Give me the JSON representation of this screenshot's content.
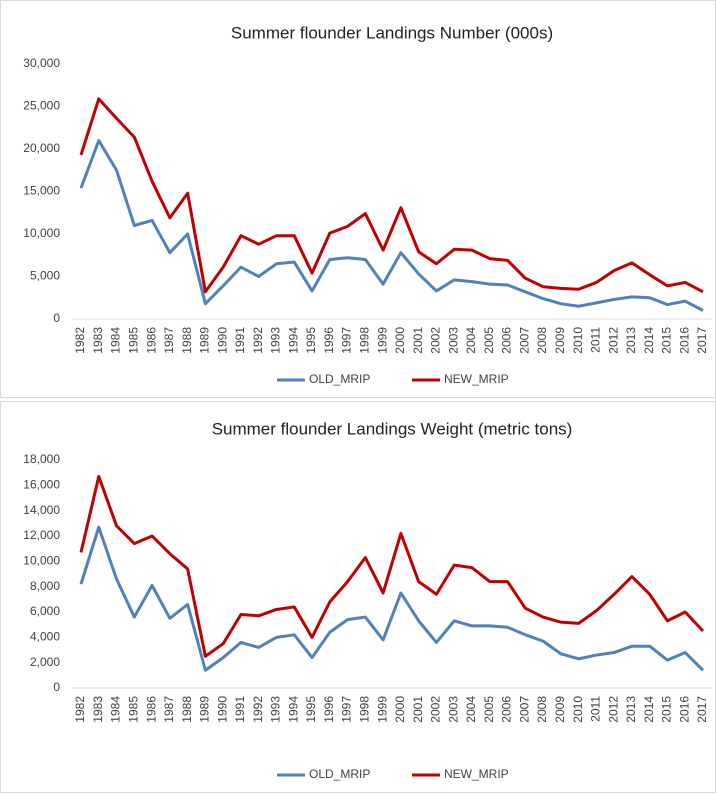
{
  "chart_data": [
    {
      "type": "line",
      "title": "Summer flounder Landings Number (000s)",
      "categories": [
        "1982",
        "1983",
        "1984",
        "1985",
        "1986",
        "1987",
        "1988",
        "1989",
        "1990",
        "1991",
        "1992",
        "1993",
        "1994",
        "1995",
        "1996",
        "1997",
        "1998",
        "1999",
        "2000",
        "2001",
        "2002",
        "2003",
        "2004",
        "2005",
        "2006",
        "2007",
        "2008",
        "2009",
        "2010",
        "2011",
        "2012",
        "2013",
        "2014",
        "2015",
        "2016",
        "2017"
      ],
      "series": [
        {
          "name": "OLD_MRIP",
          "color": "#4f81bd",
          "values": [
            15400,
            21000,
            17500,
            11000,
            11600,
            7800,
            10000,
            1800,
            3900,
            6100,
            5000,
            6500,
            6700,
            3300,
            7000,
            7200,
            7000,
            4100,
            7800,
            5300,
            3300,
            4600,
            4400,
            4100,
            4000,
            3200,
            2400,
            1800,
            1500,
            1900,
            2300,
            2600,
            2500,
            1700,
            2100,
            1000
          ]
        },
        {
          "name": "NEW_MRIP",
          "color": "#c00000",
          "values": [
            19300,
            25900,
            23600,
            21400,
            16200,
            11900,
            14800,
            3200,
            6100,
            9800,
            8800,
            9800,
            9800,
            5400,
            10100,
            10900,
            12400,
            8100,
            13100,
            7900,
            6500,
            8200,
            8100,
            7100,
            6900,
            4800,
            3800,
            3600,
            3500,
            4300,
            5700,
            6600,
            5200,
            3900,
            4300,
            3200
          ]
        }
      ],
      "ylim": [
        0,
        30000
      ],
      "yticks": [
        0,
        {
          "value": 5000,
          "label": "5,000"
        },
        {
          "value": 10000,
          "label": "10,000"
        },
        {
          "value": 15000,
          "label": "15,000"
        },
        {
          "value": 20000,
          "label": "20,000"
        },
        {
          "value": 25000,
          "label": "25,000"
        },
        {
          "value": 30000,
          "label": "30,000"
        }
      ],
      "legend": "bottom"
    },
    {
      "type": "line",
      "title": "Summer flounder Landings Weight (metric tons)",
      "categories": [
        "1982",
        "1983",
        "1984",
        "1985",
        "1986",
        "1987",
        "1988",
        "1989",
        "1990",
        "1991",
        "1992",
        "1993",
        "1994",
        "1995",
        "1996",
        "1997",
        "1998",
        "1999",
        "2000",
        "2001",
        "2002",
        "2003",
        "2004",
        "2005",
        "2006",
        "2007",
        "2008",
        "2009",
        "2010",
        "2011",
        "2012",
        "2013",
        "2014",
        "2015",
        "2016",
        "2017"
      ],
      "series": [
        {
          "name": "OLD_MRIP",
          "color": "#4f81bd",
          "values": [
            8200,
            12700,
            8600,
            5600,
            8100,
            5500,
            6600,
            1400,
            2400,
            3600,
            3200,
            4000,
            4200,
            2400,
            4400,
            5400,
            5600,
            3800,
            7500,
            5300,
            3600,
            5300,
            4900,
            4900,
            4800,
            4200,
            3700,
            2700,
            2300,
            2600,
            2800,
            3300,
            3300,
            2200,
            2800,
            1400
          ]
        },
        {
          "name": "NEW_MRIP",
          "color": "#c00000",
          "values": [
            10700,
            16700,
            12800,
            11400,
            12000,
            10600,
            9400,
            2500,
            3500,
            5800,
            5700,
            6200,
            6400,
            4000,
            6800,
            8400,
            10300,
            7500,
            12200,
            8400,
            7400,
            9700,
            9500,
            8400,
            8400,
            6300,
            5600,
            5200,
            5100,
            6100,
            7400,
            8800,
            7400,
            5300,
            6000,
            4500
          ]
        }
      ],
      "ylim": [
        0,
        18000
      ],
      "yticks": [
        0,
        {
          "value": 2000,
          "label": "2,000"
        },
        {
          "value": 4000,
          "label": "4,000"
        },
        {
          "value": 6000,
          "label": "6,000"
        },
        {
          "value": 8000,
          "label": "8,000"
        },
        {
          "value": 10000,
          "label": "10,000"
        },
        {
          "value": 12000,
          "label": "12,000"
        },
        {
          "value": 14000,
          "label": "14,000"
        },
        {
          "value": 16000,
          "label": "16,000"
        },
        {
          "value": 18000,
          "label": "18,000"
        }
      ],
      "legend": "bottom"
    }
  ]
}
